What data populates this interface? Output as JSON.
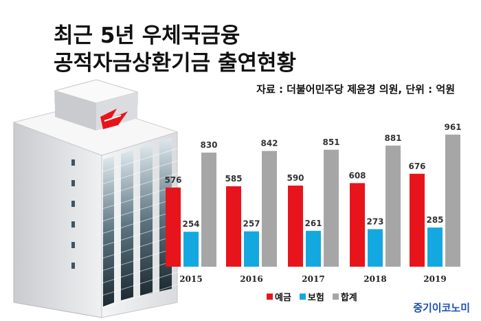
{
  "header": {
    "title_line1": "최근 5년 우체국금융",
    "title_line2": "공적자금상환기금 출연현황",
    "source": "자료 : 더불어민주당 제윤경 의원, 단위 : 억원"
  },
  "brand": "중기이코노미",
  "chart_data": {
    "type": "bar",
    "categories": [
      "2015",
      "2016",
      "2017",
      "2018",
      "2019"
    ],
    "series": [
      {
        "name": "예금",
        "values": [
          576,
          585,
          590,
          608,
          676
        ],
        "color": "#e8141b"
      },
      {
        "name": "보험",
        "values": [
          254,
          257,
          261,
          273,
          285
        ],
        "color": "#14a8e0"
      },
      {
        "name": "합계",
        "values": [
          830,
          842,
          851,
          881,
          961
        ],
        "color": "#a6a6a6"
      }
    ],
    "ylim": [
      0,
      1000
    ],
    "grid": false,
    "legend": "bottom"
  }
}
